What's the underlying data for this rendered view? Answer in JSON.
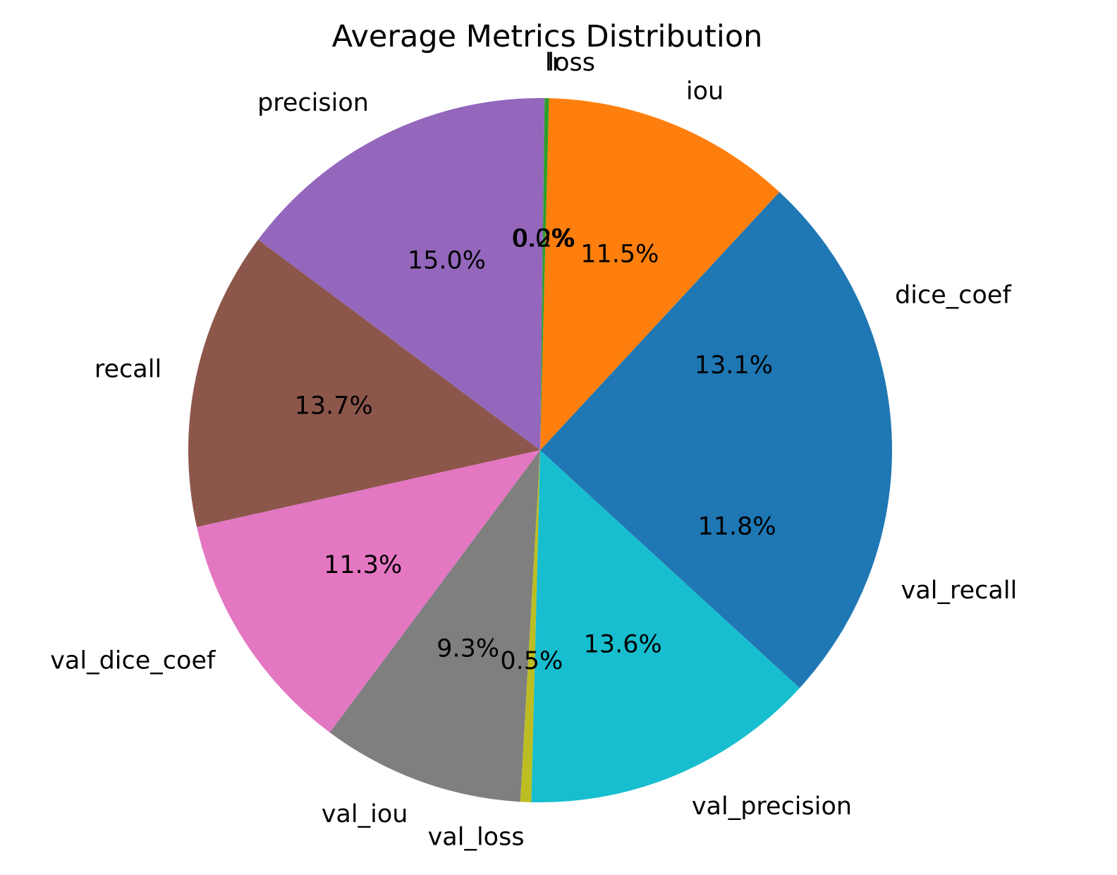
{
  "chart_data": {
    "type": "pie",
    "title": "Average Metrics Distribution",
    "start_angle_deg": 0,
    "direction": "counterclockwise",
    "slices": [
      {
        "label": "dice_coef",
        "value": 13.1,
        "pct_text": "13.1%",
        "color": "#1f77b4"
      },
      {
        "label": "iou",
        "value": 11.5,
        "pct_text": "11.5%",
        "color": "#ff7f0e"
      },
      {
        "label": "loss",
        "value": 0.2,
        "pct_text": "0.2%",
        "color": "#2ca02c"
      },
      {
        "label": "lr",
        "value": 0.0,
        "pct_text": "0.0%",
        "color": "#d62728"
      },
      {
        "label": "precision",
        "value": 15.0,
        "pct_text": "15.0%",
        "color": "#9467bd"
      },
      {
        "label": "recall",
        "value": 13.7,
        "pct_text": "13.7%",
        "color": "#8c564b"
      },
      {
        "label": "val_dice_coef",
        "value": 11.3,
        "pct_text": "11.3%",
        "color": "#e377c2"
      },
      {
        "label": "val_iou",
        "value": 9.3,
        "pct_text": "9.3%",
        "color": "#7f7f7f"
      },
      {
        "label": "val_loss",
        "value": 0.5,
        "pct_text": "0.5%",
        "color": "#bcbd22"
      },
      {
        "label": "val_precision",
        "value": 13.6,
        "pct_text": "13.6%",
        "color": "#17becf"
      },
      {
        "label": "val_recall",
        "value": 11.8,
        "pct_text": "11.8%",
        "color": "#1f77b4"
      }
    ]
  }
}
